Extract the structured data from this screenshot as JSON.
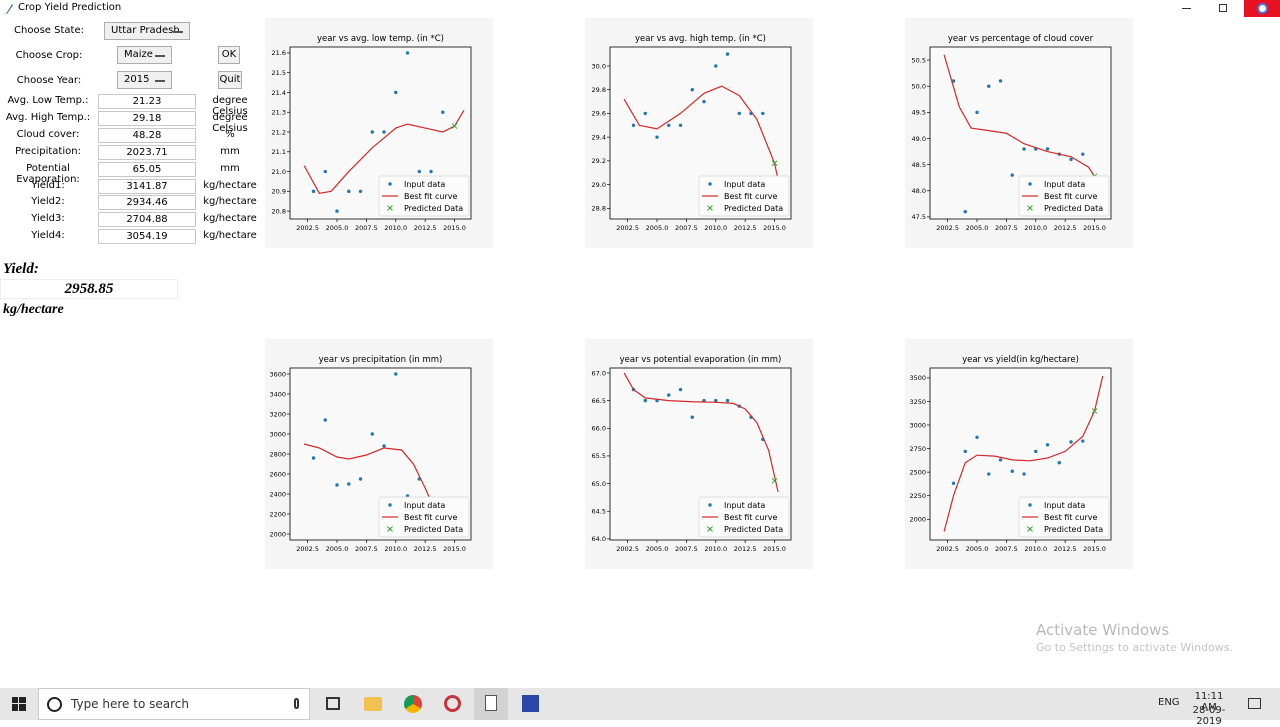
{
  "window": {
    "title": "Crop Yield Prediction"
  },
  "form": {
    "state_label": "Choose State:",
    "state": "Uttar Pradesh",
    "crop_label": "Choose Crop:",
    "crop": "Maize",
    "year_label": "Choose Year:",
    "year": "2015",
    "ok": "OK",
    "quit": "Quit",
    "rows": [
      {
        "label": "Avg. Low Temp.:",
        "value": 21.23,
        "unit": "degree Celsius"
      },
      {
        "label": "Avg. High Temp.:",
        "value": 29.18,
        "unit": "degree Celsius"
      },
      {
        "label": "Cloud cover:",
        "value": 48.28,
        "unit": "%"
      },
      {
        "label": "Precipitation:",
        "value": 2023.71,
        "unit": "mm"
      },
      {
        "label": "Potential Evaporation:",
        "value": 65.05,
        "unit": "mm"
      },
      {
        "label": "Yield1:",
        "value": 3141.87,
        "unit": "kg/hectare"
      },
      {
        "label": "Yield2:",
        "value": 2934.46,
        "unit": "kg/hectare"
      },
      {
        "label": "Yield3:",
        "value": 2704.88,
        "unit": "kg/hectare"
      },
      {
        "label": "Yield4:",
        "value": 3054.19,
        "unit": "kg/hectare"
      }
    ]
  },
  "result": {
    "label": "Yield:",
    "value": 2958.85,
    "unit": "kg/hectare"
  },
  "chart_data": [
    {
      "type": "scatter",
      "title": "year vs avg. low temp. (in *C)",
      "legend": "lower right",
      "xlim": [
        2001.0,
        2016.4
      ],
      "ylim": [
        20.76,
        21.63
      ],
      "xticks": [
        2002.5,
        {
          "value": 2005,
          "label": "2005.0"
        },
        2007.5,
        {
          "value": 2010,
          "label": "2010.0"
        },
        2012.5,
        {
          "value": 2015,
          "label": "2015.0"
        }
      ],
      "yticks": [
        20.8,
        20.9,
        {
          "value": 21,
          "label": "21.0"
        },
        21.1,
        21.2,
        21.3,
        21.4,
        21.5,
        21.6
      ],
      "series": [
        {
          "name": "Input data",
          "color": "#1f77b4",
          "marker": "o",
          "x": [
            2003,
            2004,
            2005,
            2006,
            2007,
            2008,
            2009,
            2010,
            2011,
            2012,
            2013,
            2014
          ],
          "values": [
            20.9,
            21.0,
            20.8,
            20.9,
            20.9,
            21.2,
            21.2,
            21.4,
            21.6,
            21.0,
            21.0,
            21.3
          ]
        },
        {
          "name": "Best fit curve",
          "color": "#d62728",
          "type": "line",
          "x": [
            2002.2,
            2003.5,
            2004.5,
            2006,
            2008,
            2010,
            2011,
            2012.5,
            2014,
            2015,
            2015.8
          ],
          "values": [
            21.03,
            20.89,
            20.9,
            21.0,
            21.12,
            21.22,
            21.24,
            21.22,
            21.2,
            21.23,
            21.31
          ]
        },
        {
          "name": "Predicted Data",
          "color": "#2ca02c",
          "marker": "x",
          "x": [
            2015
          ],
          "values": [
            21.23
          ]
        }
      ]
    },
    {
      "type": "scatter",
      "title": "year vs avg. high temp. (in *C)",
      "legend": "lower right",
      "xlim": [
        2001.0,
        2016.4
      ],
      "ylim": [
        28.71,
        30.16
      ],
      "xticks": [
        2002.5,
        {
          "value": 2005,
          "label": "2005.0"
        },
        2007.5,
        {
          "value": 2010,
          "label": "2010.0"
        },
        2012.5,
        {
          "value": 2015,
          "label": "2015.0"
        }
      ],
      "yticks": [
        28.8,
        {
          "value": 29,
          "label": "29.0"
        },
        29.2,
        29.4,
        29.6,
        29.8,
        {
          "value": 30,
          "label": "30.0"
        }
      ],
      "series": [
        {
          "name": "Input data",
          "color": "#1f77b4",
          "marker": "o",
          "x": [
            2003,
            2004,
            2005,
            2006,
            2007,
            2008,
            2009,
            2010,
            2011,
            2012,
            2013,
            2014
          ],
          "values": [
            29.5,
            29.6,
            29.4,
            29.5,
            29.5,
            29.8,
            29.7,
            30.0,
            30.1,
            29.6,
            29.6,
            29.6
          ]
        },
        {
          "name": "Best fit curve",
          "color": "#d62728",
          "type": "line",
          "x": [
            2002.2,
            2003.5,
            2005,
            2007,
            2009,
            2010.5,
            2012,
            2013.5,
            2015,
            2015.5
          ],
          "values": [
            29.72,
            29.5,
            29.47,
            29.6,
            29.77,
            29.83,
            29.75,
            29.55,
            29.18,
            28.95
          ]
        },
        {
          "name": "Predicted Data",
          "color": "#2ca02c",
          "marker": "x",
          "x": [
            2015
          ],
          "values": [
            29.18
          ]
        }
      ]
    },
    {
      "type": "scatter",
      "title": "year vs percentage of cloud cover",
      "legend": "lower right",
      "xlim": [
        2001.0,
        2016.4
      ],
      "ylim": [
        47.46,
        50.75
      ],
      "xticks": [
        2002.5,
        {
          "value": 2005,
          "label": "2005.0"
        },
        2007.5,
        {
          "value": 2010,
          "label": "2010.0"
        },
        2012.5,
        {
          "value": 2015,
          "label": "2015.0"
        }
      ],
      "yticks": [
        47.5,
        {
          "value": 48,
          "label": "48.0"
        },
        48.5,
        {
          "value": 49,
          "label": "49.0"
        },
        49.5,
        {
          "value": 50,
          "label": "50.0"
        },
        50.5
      ],
      "series": [
        {
          "name": "Input data",
          "color": "#1f77b4",
          "marker": "o",
          "x": [
            2003,
            2004,
            2005,
            2006,
            2007,
            2008,
            2009,
            2010,
            2011,
            2012,
            2013,
            2014
          ],
          "values": [
            50.1,
            47.6,
            49.5,
            50.0,
            50.1,
            48.3,
            48.8,
            48.8,
            48.8,
            48.7,
            48.6,
            48.7
          ]
        },
        {
          "name": "Best fit curve",
          "color": "#d62728",
          "type": "line",
          "x": [
            2002.2,
            2003.5,
            2004.5,
            2006,
            2007.5,
            2009,
            2011,
            2013,
            2014.5,
            2015.5
          ],
          "values": [
            50.6,
            49.6,
            49.2,
            49.15,
            49.1,
            48.9,
            48.75,
            48.65,
            48.45,
            48.1
          ]
        },
        {
          "name": "Predicted Data",
          "color": "#2ca02c",
          "marker": "x",
          "x": [
            2015
          ],
          "values": [
            48.28
          ]
        }
      ]
    },
    {
      "type": "scatter",
      "title": "year vs precipitation (in mm)",
      "legend": "lower right",
      "xlim": [
        2001.0,
        2016.4
      ],
      "ylim": [
        1940,
        3660
      ],
      "xticks": [
        2002.5,
        {
          "value": 2005,
          "label": "2005.0"
        },
        2007.5,
        {
          "value": 2010,
          "label": "2010.0"
        },
        2012.5,
        {
          "value": 2015,
          "label": "2015.0"
        }
      ],
      "yticks": [
        2000,
        2200,
        2400,
        2600,
        2800,
        3000,
        3200,
        3400,
        3600
      ],
      "series": [
        {
          "name": "Input data",
          "color": "#1f77b4",
          "marker": "o",
          "x": [
            2003,
            2004,
            2005,
            2006,
            2007,
            2008,
            2009,
            2010,
            2011,
            2012
          ],
          "values": [
            2760,
            3140,
            2490,
            2500,
            2550,
            3000,
            2880,
            3600,
            2380,
            2550
          ]
        },
        {
          "name": "Best fit curve",
          "color": "#d62728",
          "type": "line",
          "x": [
            2002.2,
            2003.5,
            2005,
            2006,
            2007.5,
            2009,
            2010.5,
            2011.5,
            2012.5,
            2013.2
          ],
          "values": [
            2900,
            2860,
            2770,
            2750,
            2790,
            2860,
            2840,
            2700,
            2460,
            2270
          ]
        },
        {
          "name": "Predicted Data",
          "color": "#2ca02c",
          "marker": "x",
          "x": [],
          "values": []
        }
      ]
    },
    {
      "type": "scatter",
      "title": "year vs potential evaporation (in mm)",
      "legend": "lower right",
      "xlim": [
        2001.0,
        2016.4
      ],
      "ylim": [
        63.98,
        67.09
      ],
      "xticks": [
        2002.5,
        {
          "value": 2005,
          "label": "2005.0"
        },
        2007.5,
        {
          "value": 2010,
          "label": "2010.0"
        },
        2012.5,
        {
          "value": 2015,
          "label": "2015.0"
        }
      ],
      "yticks": [
        {
          "value": 64,
          "label": "64.0"
        },
        64.5,
        {
          "value": 65,
          "label": "65.0"
        },
        65.5,
        {
          "value": 66,
          "label": "66.0"
        },
        66.5,
        {
          "value": 67,
          "label": "67.0"
        }
      ],
      "series": [
        {
          "name": "Input data",
          "color": "#1f77b4",
          "marker": "o",
          "x": [
            2003,
            2004,
            2005,
            2006,
            2007,
            2008,
            2009,
            2010,
            2011,
            2012,
            2013,
            2014
          ],
          "values": [
            66.7,
            66.5,
            66.5,
            66.6,
            66.7,
            66.2,
            66.5,
            66.5,
            66.5,
            66.4,
            66.2,
            65.8
          ]
        },
        {
          "name": "Best fit curve",
          "color": "#d62728",
          "type": "line",
          "x": [
            2002.2,
            2003,
            2004,
            2006,
            2008,
            2010,
            2011.5,
            2012.5,
            2013.5,
            2014.5,
            2015.3
          ],
          "values": [
            67.0,
            66.7,
            66.55,
            66.5,
            66.48,
            66.47,
            66.45,
            66.35,
            66.1,
            65.6,
            64.85
          ]
        },
        {
          "name": "Predicted Data",
          "color": "#2ca02c",
          "marker": "x",
          "x": [
            2015
          ],
          "values": [
            65.05
          ]
        }
      ]
    },
    {
      "type": "scatter",
      "title": "year vs yield(in kg/hectare)",
      "legend": "lower right",
      "xlim": [
        2001.0,
        2016.4
      ],
      "ylim": [
        1780,
        3605
      ],
      "xticks": [
        2002.5,
        {
          "value": 2005,
          "label": "2005.0"
        },
        2007.5,
        {
          "value": 2010,
          "label": "2010.0"
        },
        2012.5,
        {
          "value": 2015,
          "label": "2015.0"
        }
      ],
      "yticks": [
        2000,
        2250,
        2500,
        2750,
        3000,
        3250,
        3500
      ],
      "series": [
        {
          "name": "Input data",
          "color": "#1f77b4",
          "marker": "o",
          "x": [
            2003,
            2004,
            2005,
            2006,
            2007,
            2008,
            2009,
            2010,
            2011,
            2012,
            2013,
            2014
          ],
          "values": [
            2382,
            2720,
            2870,
            2480,
            2630,
            2510,
            2480,
            2720,
            2790,
            2600,
            2820,
            2830
          ]
        },
        {
          "name": "Best fit curve",
          "color": "#d62728",
          "type": "line",
          "x": [
            2002.2,
            2003,
            2004,
            2005,
            2006.5,
            2008,
            2009.5,
            2011,
            2012.5,
            2014,
            2015,
            2015.7
          ],
          "values": [
            1870,
            2250,
            2600,
            2680,
            2670,
            2630,
            2620,
            2650,
            2720,
            2880,
            3150,
            3520
          ]
        },
        {
          "name": "Predicted Data",
          "color": "#2ca02c",
          "marker": "x",
          "x": [
            2015
          ],
          "values": [
            3150
          ]
        }
      ]
    }
  ],
  "watermark": {
    "title": "Activate Windows",
    "subtitle": "Go to Settings to activate Windows."
  },
  "taskbar": {
    "search": "Type here to search",
    "language": "ENG",
    "time": "11:11 AM",
    "date": "28-09-2019"
  }
}
